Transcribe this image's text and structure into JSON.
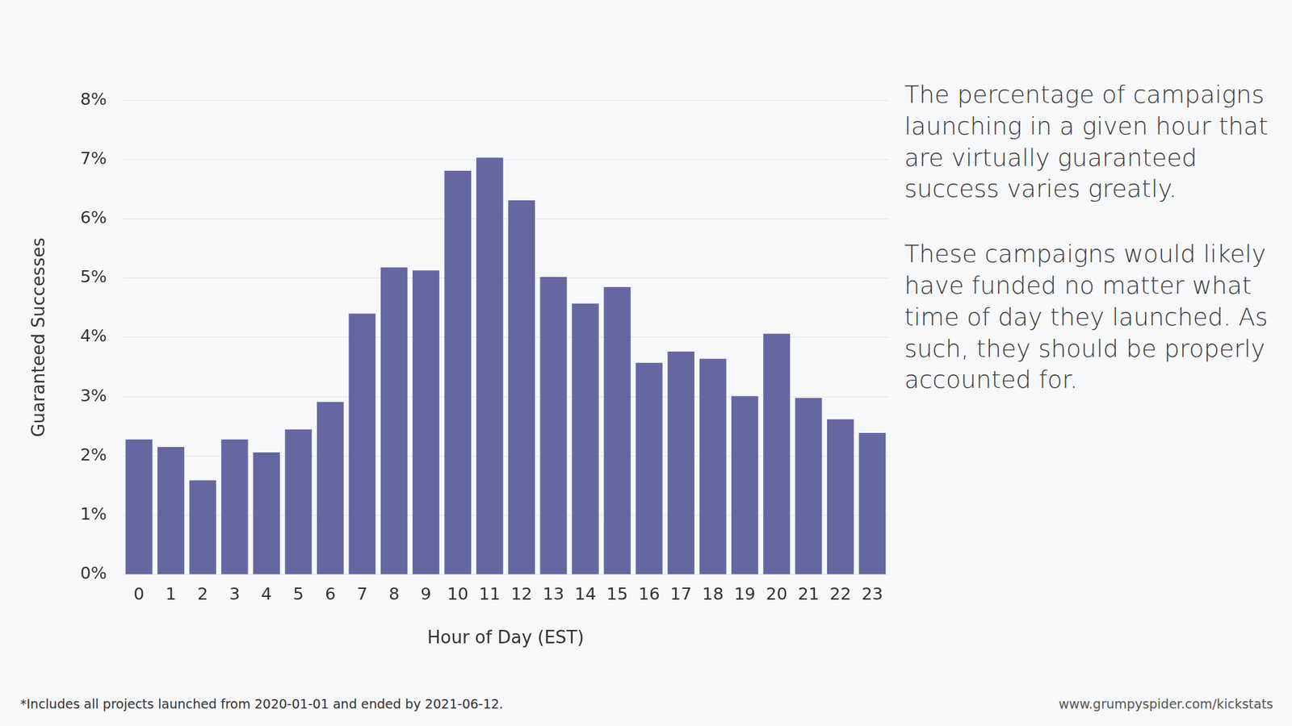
{
  "chart_data": {
    "type": "bar",
    "y_label": "Guaranteed Successes",
    "x_label": "Hour of Day (EST)",
    "categories": [
      "0",
      "1",
      "2",
      "3",
      "4",
      "5",
      "6",
      "7",
      "8",
      "9",
      "10",
      "11",
      "12",
      "13",
      "14",
      "15",
      "16",
      "17",
      "18",
      "19",
      "20",
      "21",
      "22",
      "23"
    ],
    "values": [
      2.28,
      2.15,
      1.59,
      2.28,
      2.06,
      2.45,
      2.91,
      4.4,
      5.18,
      5.13,
      6.81,
      7.03,
      6.31,
      5.02,
      4.57,
      4.85,
      3.57,
      3.76,
      3.64,
      3.01,
      4.06,
      2.98,
      2.62,
      2.39
    ],
    "color": "#6667a0",
    "ylim": [
      0,
      8
    ],
    "yticks": [
      {
        "value": 0,
        "label": "0%"
      },
      {
        "value": 1,
        "label": "1%"
      },
      {
        "value": 2,
        "label": "2%"
      },
      {
        "value": 3,
        "label": "3%"
      },
      {
        "value": 4,
        "label": "4%"
      },
      {
        "value": 5,
        "label": "5%"
      },
      {
        "value": 6,
        "label": "6%"
      },
      {
        "value": 7,
        "label": "7%"
      },
      {
        "value": 8,
        "label": "8%"
      }
    ],
    "grid": true,
    "annotations": [
      "The percentage of campaigns launching in a given hour that are virtually guaranteed success varies greatly.",
      "These campaigns would likely have funded no matter what time of day they launched. As such, they should be properly accounted for."
    ],
    "footnote": "*Includes all projects launched from 2020-01-01 and ended by 2021-06-12.",
    "source": "www.grumpyspider.com/kickstats"
  }
}
